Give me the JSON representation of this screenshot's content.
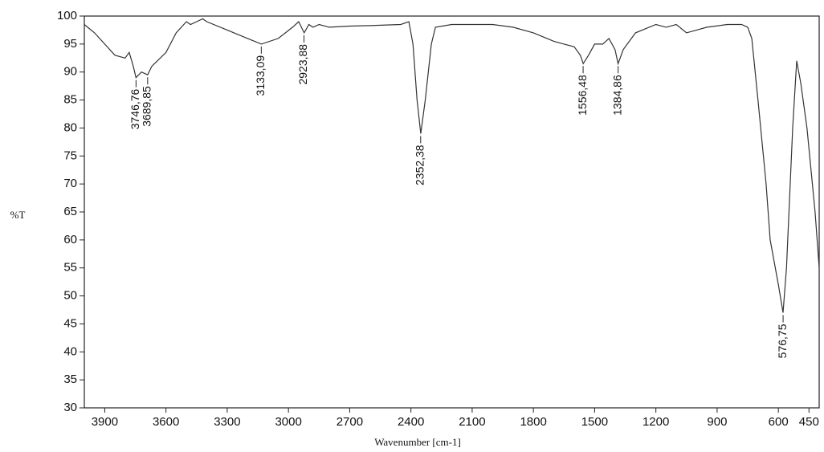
{
  "chart_data": {
    "type": "line",
    "xlabel": "Wavenumber [cm-1]",
    "ylabel": "%T",
    "x": [
      4000,
      3950,
      3900,
      3850,
      3800,
      3780,
      3760,
      3747,
      3720,
      3690,
      3670,
      3600,
      3550,
      3500,
      3480,
      3450,
      3420,
      3400,
      3300,
      3200,
      3133,
      3050,
      2980,
      2950,
      2923,
      2900,
      2880,
      2850,
      2800,
      2700,
      2600,
      2450,
      2410,
      2390,
      2370,
      2352,
      2330,
      2300,
      2280,
      2200,
      2000,
      1900,
      1800,
      1700,
      1650,
      1600,
      1570,
      1556,
      1530,
      1500,
      1460,
      1430,
      1400,
      1385,
      1360,
      1300,
      1200,
      1150,
      1100,
      1050,
      1000,
      950,
      850,
      780,
      750,
      730,
      700,
      660,
      640,
      600,
      577,
      560,
      530,
      510,
      490,
      460,
      420,
      400
    ],
    "values": [
      98.5,
      97,
      95,
      93,
      92.5,
      93.5,
      91,
      89,
      90,
      89.5,
      91,
      93.5,
      97,
      99,
      98.5,
      99,
      99.5,
      99,
      97.5,
      96,
      95,
      96,
      98,
      99,
      97,
      98.5,
      98,
      98.5,
      98,
      98.2,
      98.3,
      98.5,
      99,
      95,
      85,
      79,
      85,
      95,
      98,
      98.5,
      98.5,
      98,
      97,
      95.5,
      95,
      94.5,
      93,
      91.5,
      93,
      95,
      95,
      96,
      94,
      91.5,
      94,
      97,
      98.5,
      98,
      98.5,
      97,
      97.5,
      98,
      98.5,
      98.5,
      98,
      96,
      85,
      70,
      60,
      52,
      47,
      55,
      80,
      92,
      88,
      80,
      65,
      55
    ],
    "color": "#333333",
    "xlim": [
      4000,
      400
    ],
    "ylim": [
      30,
      100
    ],
    "xticks": [
      3900,
      3600,
      3300,
      3000,
      2700,
      2400,
      2100,
      1800,
      1500,
      1200,
      900,
      600,
      450
    ],
    "yticks": [
      30,
      35,
      40,
      45,
      50,
      55,
      60,
      65,
      70,
      75,
      80,
      85,
      90,
      95,
      100
    ],
    "annotations": [
      {
        "label": "3746,76",
        "x": 3746.76,
        "y": 89
      },
      {
        "label": "3689,85",
        "x": 3689.85,
        "y": 89.5
      },
      {
        "label": "3133,09",
        "x": 3133.09,
        "y": 95
      },
      {
        "label": "2923,88",
        "x": 2923.88,
        "y": 97
      },
      {
        "label": "2352,38",
        "x": 2352.38,
        "y": 79
      },
      {
        "label": "1556,48",
        "x": 1556.48,
        "y": 91.5
      },
      {
        "label": "1384,86",
        "x": 1384.86,
        "y": 91.5
      },
      {
        "label": "576,75",
        "x": 576.75,
        "y": 47
      }
    ]
  }
}
